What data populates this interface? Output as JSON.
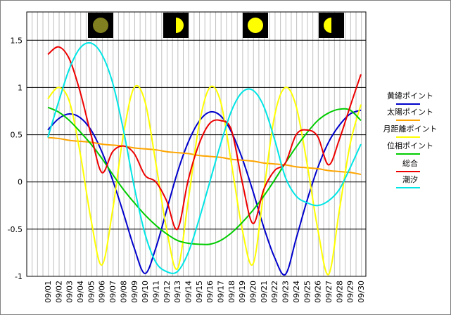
{
  "chart_data": {
    "type": "line",
    "categories": [
      "09/01",
      "09/02",
      "09/03",
      "09/04",
      "09/05",
      "09/06",
      "09/07",
      "09/08",
      "09/09",
      "09/10",
      "09/11",
      "09/12",
      "09/13",
      "09/14",
      "09/15",
      "09/16",
      "09/17",
      "09/18",
      "09/19",
      "09/20",
      "09/21",
      "09/22",
      "09/23",
      "09/24",
      "09/25",
      "09/26",
      "09/27",
      "09/28",
      "09/29",
      "09/30"
    ],
    "ylim": [
      -1,
      1.8
    ],
    "yticks": [
      -1,
      -0.5,
      0,
      0.5,
      1,
      1.5
    ],
    "grid": true,
    "series": [
      {
        "name": "黄緯ポイント",
        "color": "#0000cc",
        "values": [
          0.55,
          0.67,
          0.72,
          0.68,
          0.55,
          0.32,
          0.02,
          -0.33,
          -0.7,
          -0.97,
          -0.7,
          -0.3,
          0.1,
          0.42,
          0.64,
          0.74,
          0.7,
          0.53,
          0.25,
          -0.1,
          -0.48,
          -0.8,
          -0.98,
          -0.6,
          -0.2,
          0.15,
          0.42,
          0.6,
          0.72,
          0.76
        ]
      },
      {
        "name": "太陽ポイント",
        "color": "#ffa500",
        "values": [
          0.47,
          0.46,
          0.44,
          0.43,
          0.42,
          0.4,
          0.39,
          0.38,
          0.36,
          0.35,
          0.34,
          0.32,
          0.31,
          0.3,
          0.28,
          0.27,
          0.26,
          0.24,
          0.23,
          0.22,
          0.2,
          0.19,
          0.18,
          0.16,
          0.15,
          0.14,
          0.12,
          0.11,
          0.1,
          0.08
        ]
      },
      {
        "name": "月距離ポイント",
        "color": "#ffff00",
        "values": [
          0.88,
          1.0,
          0.85,
          0.3,
          -0.4,
          -0.88,
          -0.3,
          0.5,
          1.0,
          0.85,
          0.2,
          -0.5,
          -0.92,
          -0.2,
          0.6,
          1.0,
          0.85,
          0.2,
          -0.5,
          -0.87,
          -0.1,
          0.7,
          1.0,
          0.8,
          0.2,
          -0.5,
          -0.98,
          -0.3,
          0.4,
          0.82
        ]
      },
      {
        "name": "位相ポイント",
        "color": "#00cc00",
        "values": [
          0.79,
          0.74,
          0.65,
          0.53,
          0.4,
          0.25,
          0.08,
          -0.08,
          -0.22,
          -0.35,
          -0.46,
          -0.55,
          -0.62,
          -0.65,
          -0.66,
          -0.66,
          -0.62,
          -0.54,
          -0.43,
          -0.3,
          -0.15,
          0.02,
          0.2,
          0.37,
          0.52,
          0.65,
          0.73,
          0.77,
          0.76,
          0.65
        ]
      },
      {
        "name": "総合",
        "color": "#ee0000",
        "values": [
          1.35,
          1.43,
          1.3,
          0.95,
          0.5,
          0.1,
          0.32,
          0.38,
          0.3,
          0.07,
          0,
          -0.2,
          -0.5,
          0.02,
          0.4,
          0.62,
          0.65,
          0.55,
          0.0,
          -0.44,
          -0.08,
          0.12,
          0.2,
          0.5,
          0.55,
          0.48,
          0.18,
          0.45,
          0.8,
          1.14
        ]
      },
      {
        "name": "潮汐",
        "color": "#00e5e5",
        "values": [
          0.47,
          0.85,
          1.2,
          1.42,
          1.47,
          1.35,
          1.05,
          0.55,
          -0.05,
          -0.55,
          -0.85,
          -0.95,
          -0.95,
          -0.75,
          -0.4,
          0.0,
          0.4,
          0.75,
          0.95,
          0.97,
          0.8,
          0.45,
          0.05,
          -0.15,
          -0.22,
          -0.25,
          -0.2,
          -0.08,
          0.15,
          0.4
        ]
      }
    ]
  }
}
